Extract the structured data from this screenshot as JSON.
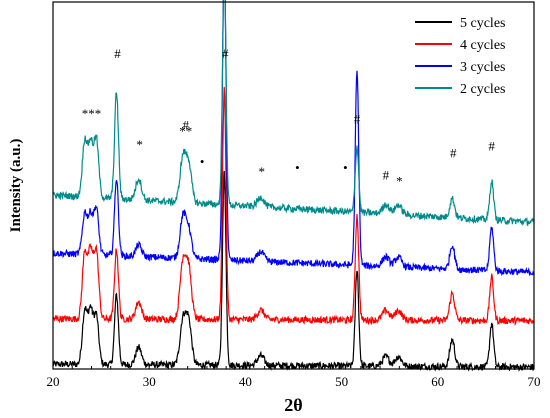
{
  "chart_data": {
    "type": "line",
    "title": "",
    "xlabel": "2θ",
    "ylabel": "Intensity (a.u.)",
    "xlim": [
      20,
      70
    ],
    "xticks": [
      "20",
      "30",
      "40",
      "50",
      "60",
      "70"
    ],
    "y_tick_labels": false,
    "grid": false,
    "legend_position": "top-right",
    "peaks": [
      {
        "center": 23.3,
        "width": 0.25
      },
      {
        "center": 23.9,
        "width": 0.25
      },
      {
        "center": 24.5,
        "width": 0.25
      },
      {
        "center": 26.6,
        "width": 0.2
      },
      {
        "center": 28.9,
        "width": 0.3
      },
      {
        "center": 33.5,
        "width": 0.3
      },
      {
        "center": 34.1,
        "width": 0.3
      },
      {
        "center": 37.8,
        "width": 0.18
      },
      {
        "center": 41.6,
        "width": 0.35
      },
      {
        "center": 51.6,
        "width": 0.18
      },
      {
        "center": 54.6,
        "width": 0.35
      },
      {
        "center": 55.9,
        "width": 0.35
      },
      {
        "center": 61.5,
        "width": 0.25
      },
      {
        "center": 65.6,
        "width": 0.2
      }
    ],
    "series": [
      {
        "name": "5 cycles",
        "color": "#000000",
        "baseline": [
          [
            20,
            5
          ],
          [
            70,
            2
          ]
        ],
        "peak_heights": [
          55,
          55,
          50,
          72,
          18,
          45,
          45,
          200,
          10,
          100,
          10,
          10,
          28,
          45
        ]
      },
      {
        "name": "4 cycles",
        "color": "#ff0000",
        "baseline": [
          [
            20,
            52
          ],
          [
            70,
            50
          ]
        ],
        "peak_heights": [
          68,
          68,
          70,
          72,
          18,
          58,
          52,
          240,
          10,
          108,
          10,
          10,
          28,
          45
        ]
      },
      {
        "name": "3 cycles",
        "color": "#0000ff",
        "baseline": [
          [
            20,
            120
          ],
          [
            70,
            100
          ]
        ],
        "peak_heights": [
          42,
          40,
          48,
          80,
          12,
          42,
          30,
          315,
          10,
          200,
          10,
          10,
          25,
          45
        ]
      },
      {
        "name": "2 cycles",
        "color": "#008b8b",
        "baseline": [
          [
            20,
            180
          ],
          [
            70,
            152
          ]
        ],
        "peak_heights": [
          58,
          55,
          60,
          110,
          22,
          45,
          40,
          240,
          10,
          68,
          10,
          10,
          20,
          40
        ]
      }
    ],
    "annotations": [
      {
        "text": "***",
        "x": 24.0,
        "y": 260
      },
      {
        "text": "#",
        "x": 26.7,
        "y": 322
      },
      {
        "text": "*",
        "x": 29.0,
        "y": 228
      },
      {
        "text": "**",
        "x": 33.8,
        "y": 242
      },
      {
        "text": "#",
        "x": 33.8,
        "y": 248
      },
      {
        "text": "•",
        "x": 35.5,
        "y": 210
      },
      {
        "text": "#",
        "x": 37.9,
        "y": 322
      },
      {
        "text": "*",
        "x": 41.7,
        "y": 200
      },
      {
        "text": "•",
        "x": 45.4,
        "y": 204
      },
      {
        "text": "•",
        "x": 50.4,
        "y": 204
      },
      {
        "text": "#",
        "x": 51.6,
        "y": 254
      },
      {
        "text": "#",
        "x": 54.6,
        "y": 196
      },
      {
        "text": "*",
        "x": 56.0,
        "y": 190
      },
      {
        "text": "#",
        "x": 61.6,
        "y": 219
      },
      {
        "text": "#",
        "x": 65.6,
        "y": 226
      }
    ]
  }
}
